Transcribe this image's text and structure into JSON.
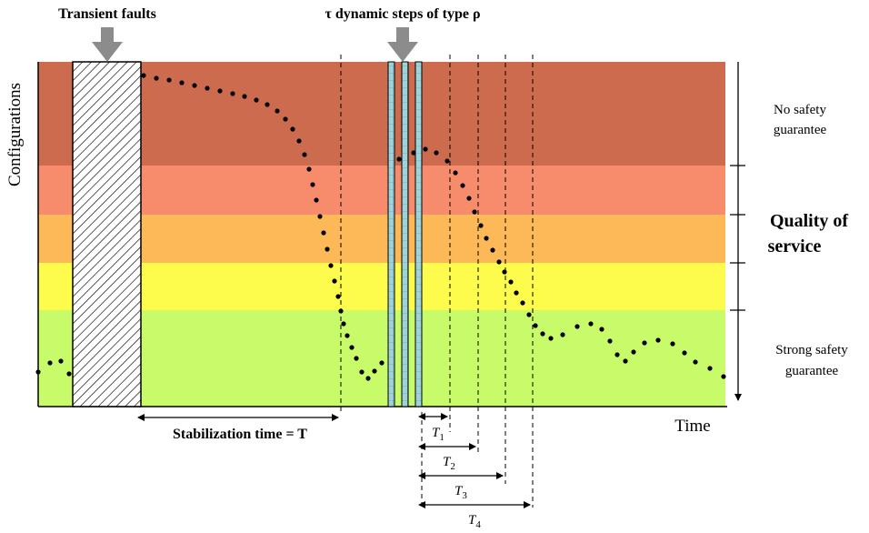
{
  "title_faults": "Transient faults",
  "title_dynamic": "τ dynamic steps of type ρ",
  "y_axis_label": "Configurations",
  "x_axis_label": "Time",
  "stabilization_label": "Stabilization time = T",
  "t_labels": [
    {
      "base": "T",
      "sub": "1"
    },
    {
      "base": "T",
      "sub": "2"
    },
    {
      "base": "T",
      "sub": "3"
    },
    {
      "base": "T",
      "sub": "4"
    }
  ],
  "right_top": [
    "No safety",
    "guarantee"
  ],
  "right_mid": [
    "Quality of",
    "service"
  ],
  "right_bottom": [
    "Strong safety",
    "guarantee"
  ],
  "colors": {
    "band1": "#cc6b4d",
    "band2": "#f68c6b",
    "band3": "#fdb957",
    "band4": "#fdfb4b",
    "band5": "#c8fb6a",
    "step_fill": "#9ed3d9",
    "arrow": "#8c8c8c"
  }
}
